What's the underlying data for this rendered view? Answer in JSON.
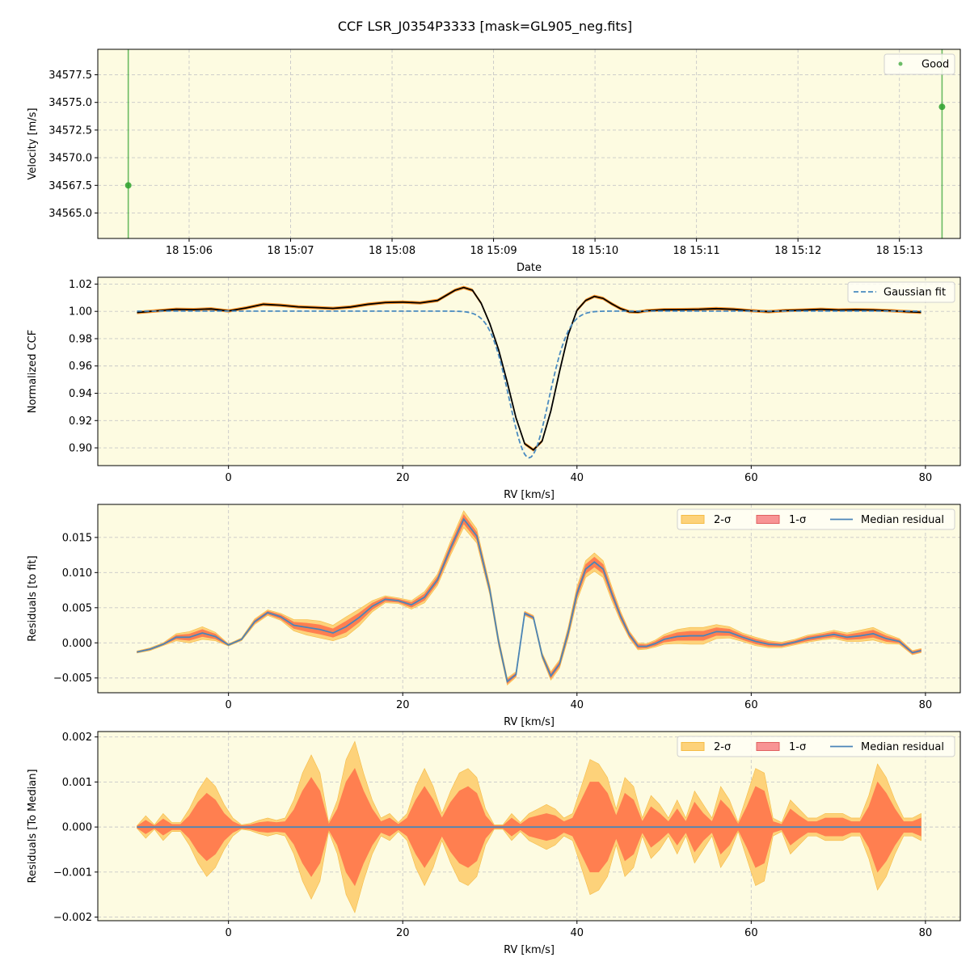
{
  "figure": {
    "title": "CCF LSR_J0354P3333 [mask=GL905_neg.fits]",
    "background": "#ffffff",
    "axes_bg": "#fdfbe1"
  },
  "chart_data": [
    {
      "type": "scatter",
      "id": "velocity",
      "xlabel": "Date",
      "ylabel": "Velocity [m/s]",
      "xlim": [
        5.1,
        13.6
      ],
      "ylim": [
        34562.7,
        34579.8
      ],
      "xticks": [
        {
          "v": 6,
          "label": "18 15:06"
        },
        {
          "v": 7,
          "label": "18 15:07"
        },
        {
          "v": 8,
          "label": "18 15:08"
        },
        {
          "v": 9,
          "label": "18 15:09"
        },
        {
          "v": 10,
          "label": "18 15:10"
        },
        {
          "v": 11,
          "label": "18 15:11"
        },
        {
          "v": 12,
          "label": "18 15:12"
        },
        {
          "v": 13,
          "label": "18 15:13"
        }
      ],
      "yticks": [
        {
          "v": 34565.0,
          "label": "34565.0"
        },
        {
          "v": 34567.5,
          "label": "34567.5"
        },
        {
          "v": 34570.0,
          "label": "34570.0"
        },
        {
          "v": 34572.5,
          "label": "34572.5"
        },
        {
          "v": 34575.0,
          "label": "34575.0"
        },
        {
          "v": 34577.5,
          "label": "34577.5"
        }
      ],
      "series": [
        {
          "name": "Good",
          "color": "#2ca02c",
          "x": [
            5.4,
            13.42
          ],
          "y": [
            34567.5,
            34574.6
          ]
        }
      ],
      "legend": {
        "position": "top-right",
        "entries": [
          "Good"
        ]
      }
    },
    {
      "type": "line",
      "id": "ccf",
      "xlabel": "RV [km/s]",
      "ylabel": "Normalized CCF",
      "xlim": [
        -15,
        84
      ],
      "ylim": [
        0.887,
        1.025
      ],
      "xticks": [
        {
          "v": 0,
          "label": "0"
        },
        {
          "v": 20,
          "label": "20"
        },
        {
          "v": 40,
          "label": "40"
        },
        {
          "v": 60,
          "label": "60"
        },
        {
          "v": 80,
          "label": "80"
        }
      ],
      "yticks": [
        {
          "v": 0.9,
          "label": "0.90"
        },
        {
          "v": 0.92,
          "label": "0.92"
        },
        {
          "v": 0.94,
          "label": "0.94"
        },
        {
          "v": 0.96,
          "label": "0.96"
        },
        {
          "v": 0.98,
          "label": "0.98"
        },
        {
          "v": 1.0,
          "label": "1.00"
        },
        {
          "v": 1.02,
          "label": "1.02"
        }
      ],
      "series": [
        {
          "name": "CCF",
          "color": "#000000",
          "x": [
            -10.5,
            -8,
            -6,
            -4,
            -2,
            0,
            2,
            4,
            6,
            8,
            10,
            12,
            14,
            16,
            18,
            20,
            22,
            24,
            26,
            27,
            28,
            29,
            30,
            31,
            32,
            33,
            34,
            35,
            36,
            37,
            38,
            39,
            40,
            41,
            42,
            43,
            44,
            45,
            46,
            47,
            48,
            50,
            52,
            54,
            56,
            58,
            60,
            62,
            64,
            66,
            68,
            70,
            72,
            74,
            76,
            78,
            79.5
          ],
          "y": [
            0.9992,
            1.0005,
            1.0015,
            1.0013,
            1.0018,
            1.0003,
            1.0025,
            1.0052,
            1.0045,
            1.0033,
            1.0028,
            1.0022,
            1.0032,
            1.0052,
            1.0065,
            1.0068,
            1.0062,
            1.008,
            1.0155,
            1.0175,
            1.0155,
            1.006,
            0.991,
            0.972,
            0.948,
            0.922,
            0.903,
            0.8985,
            0.905,
            0.927,
            0.956,
            0.983,
            1.0008,
            1.008,
            1.011,
            1.0095,
            1.0055,
            1.002,
            0.9998,
            0.9995,
            1.0005,
            1.0012,
            1.0013,
            1.0015,
            1.002,
            1.0015,
            1.0005,
            0.9998,
            1.0006,
            1.001,
            1.0015,
            1.001,
            1.0012,
            1.001,
            1.0005,
            0.9998,
            0.9993
          ]
        },
        {
          "name": "Gaussian fit",
          "color": "#4a8bc0",
          "style": "dashed",
          "model": "gaussian",
          "continuum": 1.0002,
          "depth": 0.1075,
          "center": 34.5,
          "sigma": 2.25
        }
      ],
      "band_color": "#ff8c1a",
      "legend": {
        "position": "top-right",
        "entries": [
          "Gaussian fit"
        ]
      }
    },
    {
      "type": "area",
      "id": "resid-fit",
      "xlabel": "RV [km/s]",
      "ylabel": "Residuals [to fit]",
      "xlim": [
        -15,
        84
      ],
      "ylim": [
        -0.0071,
        0.0197
      ],
      "xticks": [
        {
          "v": 0,
          "label": "0"
        },
        {
          "v": 20,
          "label": "20"
        },
        {
          "v": 40,
          "label": "40"
        },
        {
          "v": 60,
          "label": "60"
        },
        {
          "v": 80,
          "label": "80"
        }
      ],
      "yticks": [
        {
          "v": -0.005,
          "label": "−0.005"
        },
        {
          "v": 0.0,
          "label": "0.000"
        },
        {
          "v": 0.005,
          "label": "0.005"
        },
        {
          "v": 0.01,
          "label": "0.010"
        },
        {
          "v": 0.015,
          "label": "0.015"
        }
      ],
      "x": [
        -10.5,
        -9,
        -7.5,
        -6,
        -4.5,
        -3,
        -1.5,
        0,
        1.5,
        3,
        4.5,
        6,
        7.5,
        9,
        10.5,
        12,
        13.5,
        15,
        16.5,
        18,
        19.5,
        21,
        22.5,
        24,
        25.5,
        27,
        28.5,
        30,
        31,
        32,
        33,
        34,
        35,
        36,
        37,
        38,
        39,
        40,
        41,
        42,
        43,
        44,
        45,
        46,
        47,
        48,
        49,
        50,
        51.5,
        53,
        54.5,
        56,
        57.5,
        59,
        60.5,
        62,
        63.5,
        65,
        66.5,
        68,
        69.5,
        71,
        72.5,
        74,
        75.5,
        77,
        78.5,
        79.5
      ],
      "median": [
        -0.0013,
        -0.0009,
        -0.0002,
        0.0008,
        0.0008,
        0.0014,
        0.0009,
        -0.0003,
        0.0005,
        0.003,
        0.0043,
        0.0037,
        0.0025,
        0.0022,
        0.0019,
        0.0014,
        0.0023,
        0.0036,
        0.0052,
        0.0062,
        0.006,
        0.0054,
        0.0065,
        0.009,
        0.0135,
        0.0176,
        0.0152,
        0.0075,
        0.0002,
        -0.0055,
        -0.0045,
        0.0042,
        0.0036,
        -0.0018,
        -0.0047,
        -0.003,
        0.0015,
        0.007,
        0.0105,
        0.0115,
        0.0105,
        0.007,
        0.0038,
        0.0012,
        -0.0005,
        -0.0005,
        -0.0001,
        0.0005,
        0.0009,
        0.001,
        0.001,
        0.0016,
        0.0015,
        0.0008,
        0.0002,
        -0.0002,
        -0.0003,
        0.0001,
        0.0006,
        0.0009,
        0.0012,
        0.0008,
        0.001,
        0.0013,
        0.0006,
        0.0002,
        -0.0014,
        -0.0011
      ],
      "sigma2_half": [
        0.00015,
        0.0002,
        0.0002,
        0.0005,
        0.0008,
        0.0009,
        0.0006,
        0.00015,
        0.0002,
        0.0004,
        0.0004,
        0.0005,
        0.0008,
        0.0011,
        0.0012,
        0.0011,
        0.0014,
        0.0012,
        0.0008,
        0.0005,
        0.0004,
        0.0006,
        0.0008,
        0.0008,
        0.001,
        0.0012,
        0.001,
        0.0007,
        0.0006,
        0.0005,
        0.0004,
        0.0003,
        0.0003,
        0.0004,
        0.0006,
        0.0006,
        0.0008,
        0.001,
        0.0012,
        0.0013,
        0.0012,
        0.001,
        0.0007,
        0.0005,
        0.0005,
        0.0004,
        0.0005,
        0.0007,
        0.001,
        0.0012,
        0.0012,
        0.001,
        0.0008,
        0.0006,
        0.0006,
        0.0005,
        0.0004,
        0.0004,
        0.0005,
        0.0005,
        0.0006,
        0.0006,
        0.0008,
        0.0009,
        0.0007,
        0.0004,
        0.0003,
        0.0003
      ],
      "sigma1_half": [
        8e-05,
        0.0001,
        0.0001,
        0.00027,
        0.00045,
        0.0005,
        0.00035,
        8e-05,
        0.0001,
        0.00022,
        0.00022,
        0.0003,
        0.00045,
        0.0006,
        0.00065,
        0.0006,
        0.00078,
        0.00065,
        0.00045,
        0.0003,
        0.00022,
        0.00035,
        0.00045,
        0.00045,
        0.00055,
        0.00065,
        0.00055,
        0.0004,
        0.00035,
        0.0003,
        0.00022,
        0.00018,
        0.00018,
        0.00022,
        0.00035,
        0.00035,
        0.00045,
        0.00055,
        0.00065,
        0.0007,
        0.00065,
        0.00055,
        0.0004,
        0.0003,
        0.0003,
        0.00022,
        0.0003,
        0.0004,
        0.00055,
        0.00065,
        0.00065,
        0.00055,
        0.00045,
        0.00035,
        0.00035,
        0.0003,
        0.00022,
        0.00022,
        0.0003,
        0.0003,
        0.00035,
        0.00035,
        0.00045,
        0.0005,
        0.0004,
        0.00022,
        0.00018,
        0.00018
      ],
      "legend": {
        "position": "top-right",
        "entries": [
          "2-σ",
          "1-σ",
          "Median residual"
        ]
      }
    },
    {
      "type": "area",
      "id": "resid-median",
      "xlabel": "RV [km/s]",
      "ylabel": "Residuals [To Median]",
      "xlim": [
        -15,
        84
      ],
      "ylim": [
        -0.00208,
        0.00212
      ],
      "xticks": [
        {
          "v": 0,
          "label": "0"
        },
        {
          "v": 20,
          "label": "20"
        },
        {
          "v": 40,
          "label": "40"
        },
        {
          "v": 60,
          "label": "60"
        },
        {
          "v": 80,
          "label": "80"
        }
      ],
      "yticks": [
        {
          "v": -0.002,
          "label": "−0.002"
        },
        {
          "v": -0.001,
          "label": "−0.001"
        },
        {
          "v": 0.0,
          "label": "0.000"
        },
        {
          "v": 0.001,
          "label": "0.001"
        },
        {
          "v": 0.002,
          "label": "0.002"
        }
      ],
      "x": [
        -10.5,
        -9.5,
        -8.5,
        -7.5,
        -6.5,
        -5.5,
        -4.5,
        -3.5,
        -2.5,
        -1.5,
        -0.5,
        0.5,
        1.5,
        2.5,
        3.5,
        4.5,
        5.5,
        6.5,
        7.5,
        8.5,
        9.5,
        10.5,
        11.5,
        12.5,
        13.5,
        14.5,
        15.5,
        16.5,
        17.5,
        18.5,
        19.5,
        20.5,
        21.5,
        22.5,
        23.5,
        24.5,
        25.5,
        26.5,
        27.5,
        28.5,
        29.5,
        30.5,
        31.5,
        32.5,
        33.5,
        34.5,
        35.5,
        36.5,
        37.5,
        38.5,
        39.5,
        40.5,
        41.5,
        42.5,
        43.5,
        44.5,
        45.5,
        46.5,
        47.5,
        48.5,
        49.5,
        50.5,
        51.5,
        52.5,
        53.5,
        54.5,
        55.5,
        56.5,
        57.5,
        58.5,
        59.5,
        60.5,
        61.5,
        62.5,
        63.5,
        64.5,
        65.5,
        66.5,
        67.5,
        68.5,
        69.5,
        70.5,
        71.5,
        72.5,
        73.5,
        74.5,
        75.5,
        76.5,
        77.5,
        78.5,
        79.5
      ],
      "median": 0.0,
      "sigma2": [
        3e-05,
        0.00025,
        5e-05,
        0.0003,
        0.0001,
        0.0001,
        0.0004,
        0.0008,
        0.0011,
        0.0009,
        0.0005,
        0.0002,
        5e-05,
        8e-05,
        0.00015,
        0.0002,
        0.00015,
        0.0002,
        0.0006,
        0.0012,
        0.0016,
        0.0012,
        0.0001,
        0.0006,
        0.0015,
        0.0019,
        0.0012,
        0.0006,
        0.0002,
        0.0003,
        0.0001,
        0.0003,
        0.0009,
        0.0013,
        0.0009,
        0.0003,
        0.0008,
        0.0012,
        0.0013,
        0.0011,
        0.0004,
        5e-05,
        5e-05,
        0.0003,
        0.0001,
        0.0003,
        0.0004,
        0.0005,
        0.0004,
        0.0002,
        0.0003,
        0.0009,
        0.0015,
        0.0014,
        0.0011,
        0.0004,
        0.0011,
        0.0009,
        0.0002,
        0.0007,
        0.0005,
        0.0002,
        0.0006,
        0.0002,
        0.0008,
        0.0005,
        0.0002,
        0.0009,
        0.0006,
        0.0001,
        0.0007,
        0.0013,
        0.0012,
        0.0002,
        0.0001,
        0.0006,
        0.0004,
        0.0002,
        0.0002,
        0.0003,
        0.0003,
        0.0003,
        0.0002,
        0.0002,
        0.0007,
        0.0014,
        0.0011,
        0.0006,
        0.0002,
        0.0002,
        0.0003
      ],
      "sigma1": [
        2e-05,
        0.00015,
        3e-05,
        0.00018,
        6e-05,
        6e-05,
        0.00025,
        0.00055,
        0.00075,
        0.0006,
        0.0003,
        0.00012,
        3e-05,
        5e-05,
        0.0001,
        0.00012,
        0.0001,
        0.00012,
        0.00038,
        0.0008,
        0.0011,
        0.0008,
        6e-05,
        0.0004,
        0.001,
        0.0013,
        0.0008,
        0.0004,
        0.00012,
        0.0002,
        6e-05,
        0.0002,
        0.0006,
        0.0009,
        0.0006,
        0.0002,
        0.00055,
        0.0008,
        0.0009,
        0.00075,
        0.00025,
        3e-05,
        3e-05,
        0.0002,
        6e-05,
        0.0002,
        0.00025,
        0.0003,
        0.00025,
        0.00012,
        0.0002,
        0.0006,
        0.001,
        0.001,
        0.00075,
        0.00025,
        0.00075,
        0.0006,
        0.00012,
        0.00045,
        0.0003,
        0.00012,
        0.0004,
        0.00012,
        0.00055,
        0.0003,
        0.00012,
        0.0006,
        0.0004,
        6e-05,
        0.00045,
        0.0009,
        0.0008,
        0.00012,
        6e-05,
        0.0004,
        0.00025,
        0.00012,
        0.00012,
        0.0002,
        0.0002,
        0.0002,
        0.00012,
        0.00012,
        0.00045,
        0.001,
        0.00075,
        0.0004,
        0.00012,
        0.00012,
        0.0002
      ],
      "legend": {
        "position": "top-right",
        "entries": [
          "2-σ",
          "1-σ",
          "Median residual"
        ]
      }
    }
  ],
  "colors": {
    "sigma2": "#fdd27a",
    "sigma2_edge": "#f5bc45",
    "sigma1": "#ff7f50",
    "sigma1_legend": "#f89494",
    "sigma1_legend_edge": "#e06060",
    "median": "#4a85b8",
    "good": "#2ca02c",
    "grid": "#c8c8c8"
  }
}
